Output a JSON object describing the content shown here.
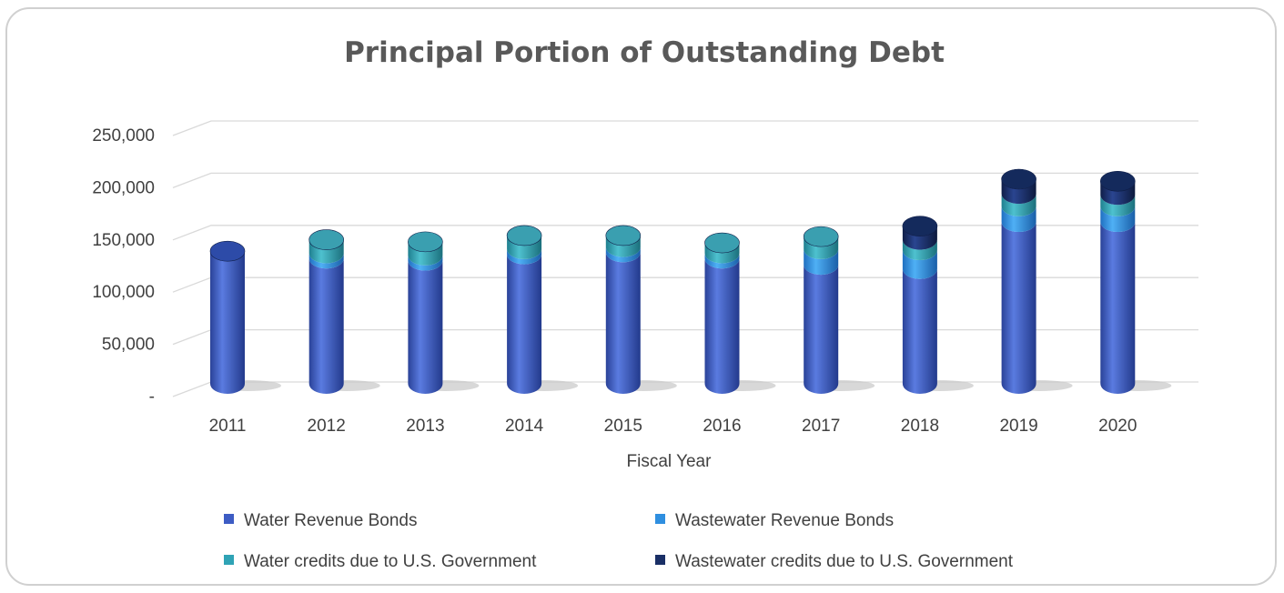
{
  "chart_data": {
    "type": "bar",
    "stacked": true,
    "style": "3d-cylinder",
    "title": "Principal Portion of Outstanding Debt",
    "xlabel": "Fiscal Year",
    "ylabel": "",
    "categories": [
      "2011",
      "2012",
      "2013",
      "2014",
      "2015",
      "2016",
      "2017",
      "2018",
      "2019",
      "2020"
    ],
    "ylim": [
      0,
      250000
    ],
    "yticks": [
      {
        "value": 0,
        "label": "-"
      },
      {
        "value": 50000,
        "label": "50,000"
      },
      {
        "value": 100000,
        "label": "100,000"
      },
      {
        "value": 150000,
        "label": "150,000"
      },
      {
        "value": 200000,
        "label": "200,000"
      },
      {
        "value": 250000,
        "label": "250,000"
      }
    ],
    "grid": true,
    "legend_position": "bottom",
    "series": [
      {
        "name": "Water Revenue Bonds",
        "color": "#3d5cc4",
        "values": [
          127000,
          120000,
          118000,
          124000,
          126000,
          120000,
          114000,
          110000,
          155000,
          155000
        ]
      },
      {
        "name": "Wastewater Revenue Bonds",
        "color": "#2f8fe0",
        "values": [
          0,
          5000,
          5000,
          5000,
          5000,
          5000,
          15000,
          18000,
          15000,
          15000
        ]
      },
      {
        "name": "Water credits due to U.S. Government",
        "color": "#2fa3b5",
        "values": [
          0,
          13000,
          13000,
          13000,
          11000,
          10000,
          12000,
          10000,
          12000,
          11000
        ]
      },
      {
        "name": "Wastewater credits due to U.S. Government",
        "color": "#1a2f66",
        "values": [
          0,
          0,
          0,
          0,
          0,
          0,
          0,
          13000,
          14000,
          13000
        ]
      }
    ]
  }
}
